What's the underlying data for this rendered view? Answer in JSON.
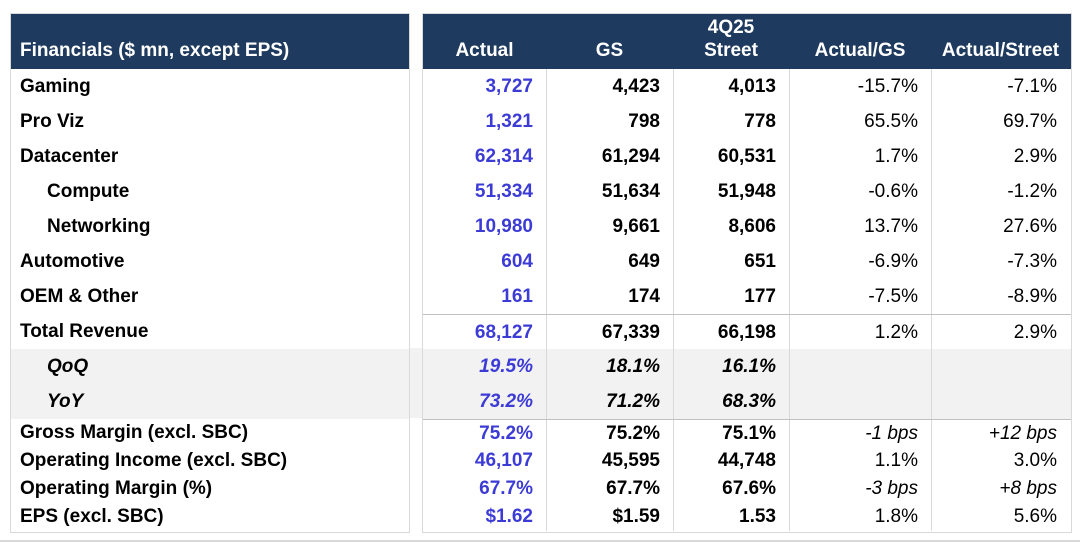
{
  "colors": {
    "header_bg": "#1e3a5f",
    "header_text": "#ffffff",
    "actual_text": "#3c3bd6",
    "band_bg": "#f2f2f2",
    "border": "#d9d9d9",
    "rule": "#c0c0c0",
    "divider": "#d9d9d9"
  },
  "table": {
    "title_quarter": "4Q25",
    "corner_header": "Financials ($ mn, except EPS)",
    "columns": [
      "Actual",
      "GS",
      "Street",
      "Actual/GS",
      "Actual/Street"
    ],
    "rows": [
      {
        "label": "Gaming",
        "indent": 0,
        "group": "segment",
        "values": [
          "3,727",
          "4,423",
          "4,013",
          "-15.7%",
          "-7.1%"
        ]
      },
      {
        "label": "Pro Viz",
        "indent": 0,
        "group": "segment",
        "values": [
          "1,321",
          "798",
          "778",
          "65.5%",
          "69.7%"
        ]
      },
      {
        "label": "Datacenter",
        "indent": 0,
        "group": "segment",
        "values": [
          "62,314",
          "61,294",
          "60,531",
          "1.7%",
          "2.9%"
        ]
      },
      {
        "label": "Compute",
        "indent": 1,
        "group": "segment",
        "values": [
          "51,334",
          "51,634",
          "51,948",
          "-0.6%",
          "-1.2%"
        ]
      },
      {
        "label": "Networking",
        "indent": 1,
        "group": "segment",
        "values": [
          "10,980",
          "9,661",
          "8,606",
          "13.7%",
          "27.6%"
        ]
      },
      {
        "label": "Automotive",
        "indent": 0,
        "group": "segment",
        "values": [
          "604",
          "649",
          "651",
          "-6.9%",
          "-7.3%"
        ]
      },
      {
        "label": "OEM & Other",
        "indent": 0,
        "group": "segment",
        "values": [
          "161",
          "174",
          "177",
          "-7.5%",
          "-8.9%"
        ]
      },
      {
        "label": "Total Revenue",
        "indent": 0,
        "group": "total",
        "values": [
          "68,127",
          "67,339",
          "66,198",
          "1.2%",
          "2.9%"
        ]
      },
      {
        "label": "QoQ",
        "indent": 1,
        "group": "growth",
        "values": [
          "19.5%",
          "18.1%",
          "16.1%",
          "",
          ""
        ]
      },
      {
        "label": "YoY",
        "indent": 1,
        "group": "growth",
        "values": [
          "73.2%",
          "71.2%",
          "68.3%",
          "",
          ""
        ]
      },
      {
        "label": "Gross Margin (excl. SBC)",
        "indent": 0,
        "group": "metric",
        "values": [
          "75.2%",
          "75.2%",
          "75.1%",
          "-1 bps",
          "+12 bps"
        ]
      },
      {
        "label": "Operating Income (excl. SBC)",
        "indent": 0,
        "group": "metric",
        "values": [
          "46,107",
          "45,595",
          "44,748",
          "1.1%",
          "3.0%"
        ]
      },
      {
        "label": "Operating Margin (%)",
        "indent": 0,
        "group": "metric",
        "values": [
          "67.7%",
          "67.7%",
          "67.6%",
          "-3 bps",
          "+8 bps"
        ]
      },
      {
        "label": "EPS (excl. SBC)",
        "indent": 0,
        "group": "metric",
        "values": [
          "$1.62",
          "$1.59",
          "1.53",
          "1.8%",
          "5.6%"
        ]
      }
    ]
  }
}
